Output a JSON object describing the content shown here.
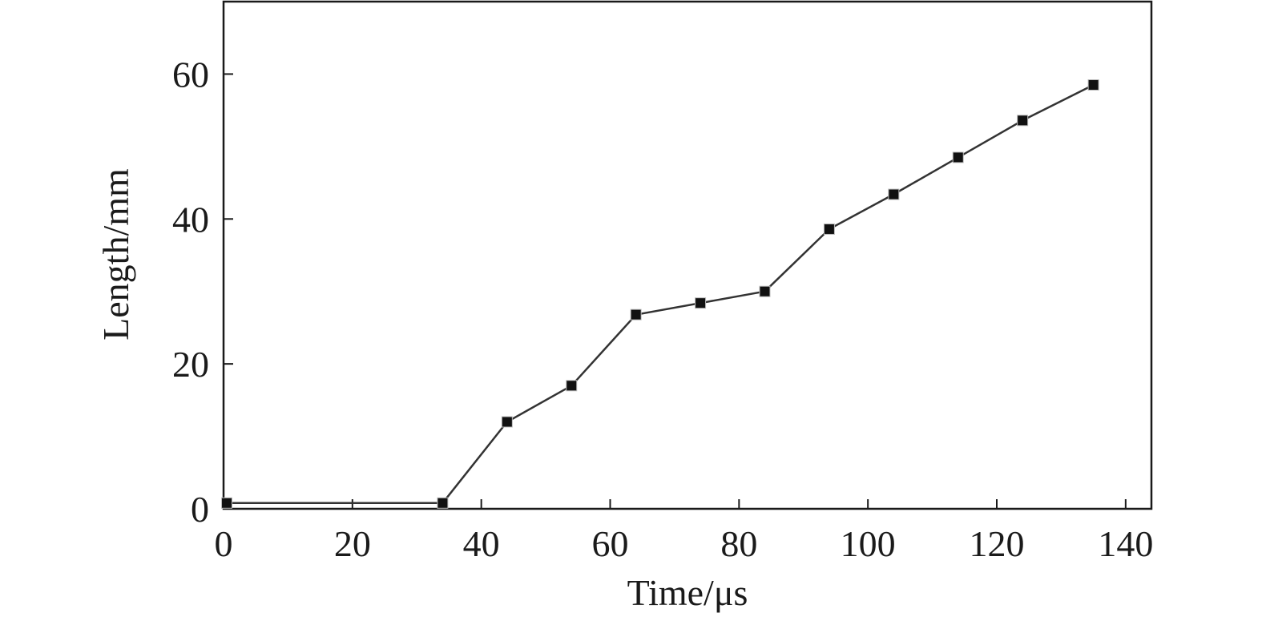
{
  "chart_data": {
    "type": "line",
    "title": "",
    "xlabel": "Time/μs",
    "ylabel": "Length/mm",
    "xlim": [
      0,
      144
    ],
    "ylim": [
      0,
      70
    ],
    "xticks": [
      0,
      20,
      40,
      60,
      80,
      100,
      120,
      140
    ],
    "yticks": [
      0,
      20,
      40,
      60
    ],
    "grid": false,
    "legend": "none",
    "marker": "square",
    "colors": {
      "line": "#333333",
      "marker": "#111111",
      "axis": "#1a1a1a"
    },
    "series": [
      {
        "x": [
          0.5,
          34,
          44,
          54,
          64,
          74,
          84,
          94,
          104,
          114,
          124,
          135
        ],
        "y": [
          0.8,
          0.8,
          12,
          17,
          26.8,
          28.4,
          30,
          38.6,
          43.4,
          48.5,
          53.6,
          58.5
        ]
      }
    ]
  }
}
